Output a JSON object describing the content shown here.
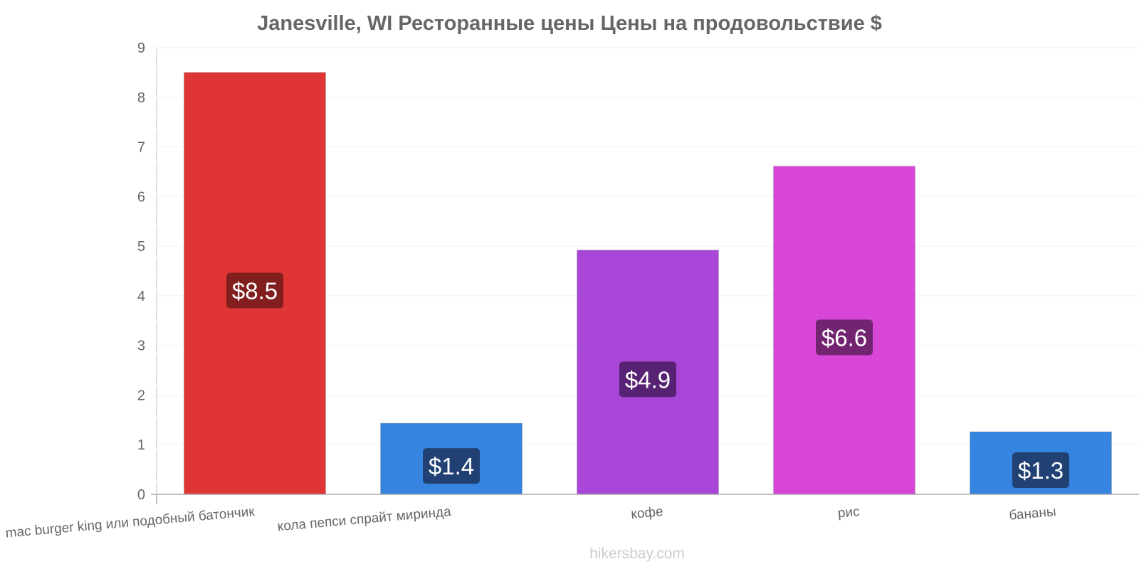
{
  "chart_data": {
    "type": "bar",
    "title": "Janesville, WI Ресторанные цены Цены на продовольствие $",
    "categories": [
      "mac burger king или подобный батончик",
      "кола пепси спрайт миринда",
      "кофе",
      "рис",
      "бананы"
    ],
    "values": [
      8.5,
      1.43,
      4.92,
      6.61,
      1.26
    ],
    "value_labels": [
      "$8.5",
      "$1.4",
      "$4.9",
      "$6.6",
      "$1.3"
    ],
    "ylim": [
      0,
      9
    ],
    "yticks": [
      "0",
      "1",
      "2",
      "3",
      "4",
      "5",
      "6",
      "7",
      "8",
      "9"
    ],
    "xlabel": "",
    "ylabel": "",
    "grid": true,
    "legend": "none",
    "bar_colors": [
      "#e03535",
      "#3584e0",
      "#a846d8",
      "#d746d6",
      "#3584e0"
    ],
    "label_bg_colors": [
      "#7a1c1c",
      "#1f3c6b",
      "#50206a",
      "#6a2268",
      "#1f3c6b"
    ]
  },
  "watermark": "hikersbay.com"
}
